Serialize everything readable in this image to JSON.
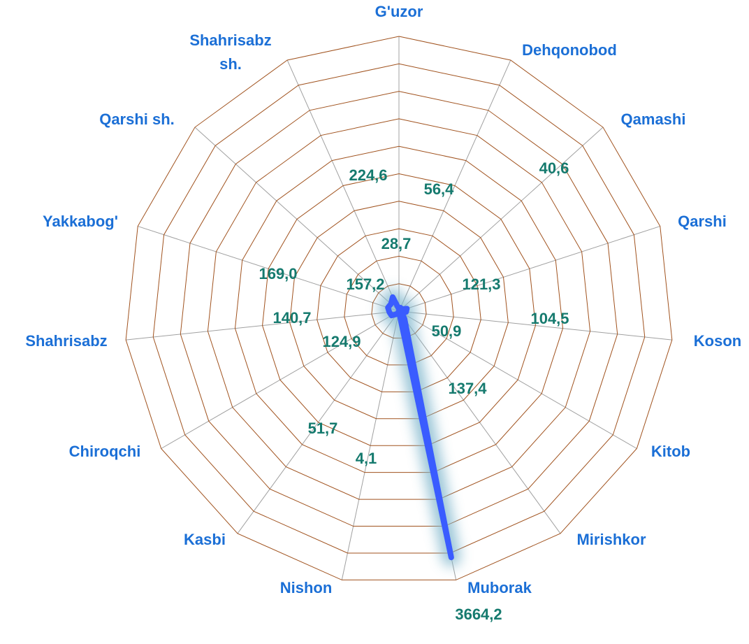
{
  "chart_data": {
    "type": "radar",
    "categories": [
      "G'uzor",
      "Dehqonobod",
      "Qamashi",
      "Qarshi",
      "Koson",
      "Kitob",
      "Mirishkor",
      "Muborak",
      "Nishon",
      "Kasbi",
      "Chiroqchi",
      "Shahrisabz",
      "Yakkabog'",
      "Qarshi sh.",
      "Shahrisabz sh."
    ],
    "values": [
      28.7,
      56.4,
      40.6,
      121.3,
      104.5,
      50.9,
      137.4,
      3664.2,
      4.1,
      51.7,
      124.9,
      140.7,
      169.0,
      157.2,
      224.6
    ],
    "value_labels": [
      "28,7",
      "56,4",
      "40,6",
      "121,3",
      "104,5",
      "50,9",
      "137,4",
      "3664,2",
      "4,1",
      "51,7",
      "124,9",
      "140,7",
      "169,0",
      "157,2",
      "224,6"
    ],
    "color": "#3a5cff",
    "rlim": [
      0,
      4000
    ],
    "rticks": [
      0,
      400,
      800,
      1200,
      1600,
      2000,
      2400,
      2800,
      3200,
      3600,
      4000
    ],
    "grid": true
  }
}
